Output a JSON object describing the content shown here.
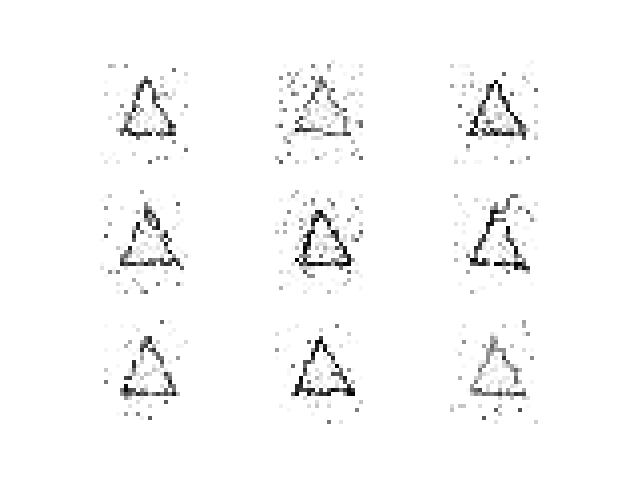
{
  "grid": {
    "rows": 3,
    "cols": 3,
    "tiles": [
      {
        "id": "r1c1",
        "shape": "triangle-icon",
        "noise_level": "low",
        "ink_strength": "medium"
      },
      {
        "id": "r1c2",
        "shape": "triangle-icon",
        "noise_level": "high",
        "ink_strength": "light"
      },
      {
        "id": "r1c3",
        "shape": "triangle-icon",
        "noise_level": "medium",
        "ink_strength": "dark"
      },
      {
        "id": "r2c1",
        "shape": "triangle-icon",
        "noise_level": "medium",
        "ink_strength": "medium"
      },
      {
        "id": "r2c2",
        "shape": "triangle-icon",
        "noise_level": "high",
        "ink_strength": "dark"
      },
      {
        "id": "r2c3",
        "shape": "triangle-icon",
        "noise_level": "medium",
        "ink_strength": "dark"
      },
      {
        "id": "r3c1",
        "shape": "triangle-icon",
        "noise_level": "low",
        "ink_strength": "medium"
      },
      {
        "id": "r3c2",
        "shape": "triangle-icon",
        "noise_level": "low",
        "ink_strength": "dark"
      },
      {
        "id": "r3c3",
        "shape": "triangle-icon",
        "noise_level": "low",
        "ink_strength": "light"
      }
    ]
  },
  "colors": {
    "background": "#ffffff",
    "ink": "#000000"
  }
}
